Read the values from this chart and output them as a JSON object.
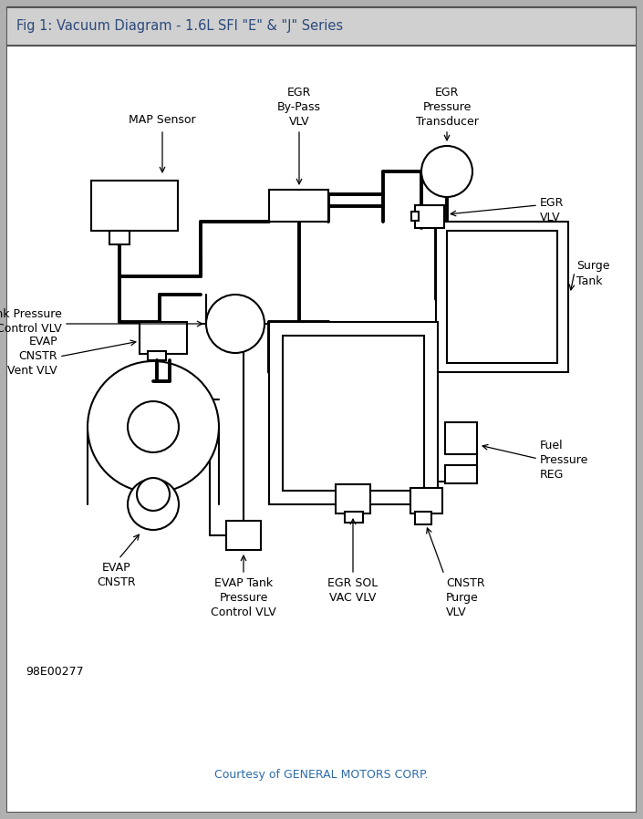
{
  "title": "Fig 1: Vacuum Diagram - 1.6L SFI \"E\" & \"J\" Series",
  "title_color": "#2c4a7c",
  "title_bg": "#d0d0d0",
  "courtesy": "Courtesy of GENERAL MOTORS CORP.",
  "courtesy_color": "#2c6ca8",
  "code": "98E00277",
  "outer_bg": "#b0b0b0",
  "inner_bg": "#ffffff",
  "border_color": "#000000"
}
